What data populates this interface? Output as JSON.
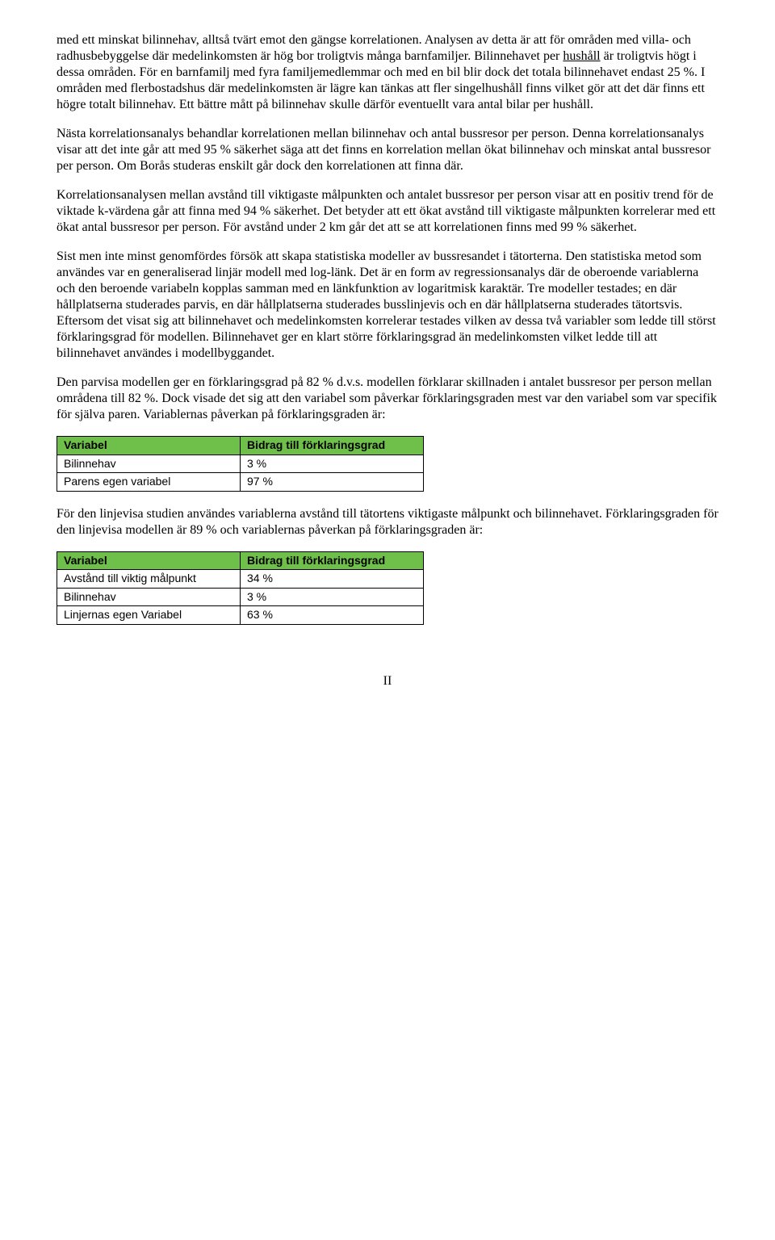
{
  "para1_a": "med ett minskat bilinnehav, alltså tvärt emot den gängse korrelationen. Analysen av detta är att för områden med villa- och radhusbebyggelse där medelinkomsten är hög bor troligtvis många barnfamiljer. Bilinnehavet per ",
  "para1_u": "hushåll",
  "para1_b": " är troligtvis högt i dessa områden. För en barnfamilj med fyra familjemedlemmar och med en bil blir dock det totala bilinnehavet endast 25 %. I områden med flerbostadshus där medelinkomsten är lägre kan tänkas att fler singelhushåll finns vilket gör att det där finns ett högre totalt bilinnehav. Ett bättre mått på bilinnehav skulle därför eventuellt vara antal bilar per hushåll.",
  "para2": "Nästa korrelationsanalys behandlar korrelationen mellan bilinnehav och antal bussresor per person. Denna korrelationsanalys visar att det inte går att med 95 % säkerhet säga att det finns en korrelation mellan ökat bilinnehav och minskat antal bussresor per person. Om Borås studeras enskilt går dock den korrelationen att finna där.",
  "para3": "Korrelationsanalysen mellan avstånd till viktigaste målpunkten och antalet bussresor per person visar att en positiv trend för de viktade k-värdena går att finna med 94 % säkerhet. Det betyder att ett ökat avstånd till viktigaste målpunkten korrelerar med ett ökat antal bussresor per person. För avstånd under 2 km går det att se att korrelationen finns med 99 % säkerhet.",
  "para4": "Sist men inte minst genomfördes försök att skapa statistiska modeller av bussresandet i tätorterna. Den statistiska metod som användes var en generaliserad linjär modell med log-länk. Det är en form av regressionsanalys där de oberoende variablerna och den beroende variabeln kopplas samman med en länkfunktion av logaritmisk karaktär. Tre modeller testades; en där hållplatserna studerades parvis, en där hållplatserna studerades busslinjevis och en där hållplatserna studerades tätortsvis. Eftersom det visat sig att bilinnehavet och medelinkomsten korrelerar testades vilken av dessa två variabler som ledde till störst förklaringsgrad för modellen. Bilinnehavet ger en klart större förklaringsgrad än medelinkomsten vilket ledde till att bilinnehavet användes i modellbyggandet.",
  "para5": "Den parvisa modellen ger en förklaringsgrad på 82 % d.v.s. modellen förklarar skillnaden i antalet bussresor per person mellan områdena till 82 %. Dock visade det sig att den variabel som påverkar förklaringsgraden mest var den variabel som var specifik för själva paren. Variablernas påverkan på förklaringsgraden är:",
  "para6": "För den linjevisa studien användes variablerna avstånd till tätortens viktigaste målpunkt och bilinnehavet. Förklaringsgraden för den linjevisa modellen är 89 % och variablernas påverkan på förklaringsgraden är:",
  "table1": {
    "header_col1": "Variabel",
    "header_col2": "Bidrag till förklaringsgrad",
    "rows": [
      {
        "c1": "Bilinnehav",
        "c2": "3 %"
      },
      {
        "c1": "Parens egen variabel",
        "c2": "97 %"
      }
    ],
    "header_bg": "#6fbf4b"
  },
  "table2": {
    "header_col1": "Variabel",
    "header_col2": "Bidrag till förklaringsgrad",
    "rows": [
      {
        "c1": "Avstånd till viktig målpunkt",
        "c2": "34 %"
      },
      {
        "c1": "Bilinnehav",
        "c2": "3 %"
      },
      {
        "c1": "Linjernas egen Variabel",
        "c2": "63 %"
      }
    ],
    "header_bg": "#6fbf4b"
  },
  "page_number": "II"
}
